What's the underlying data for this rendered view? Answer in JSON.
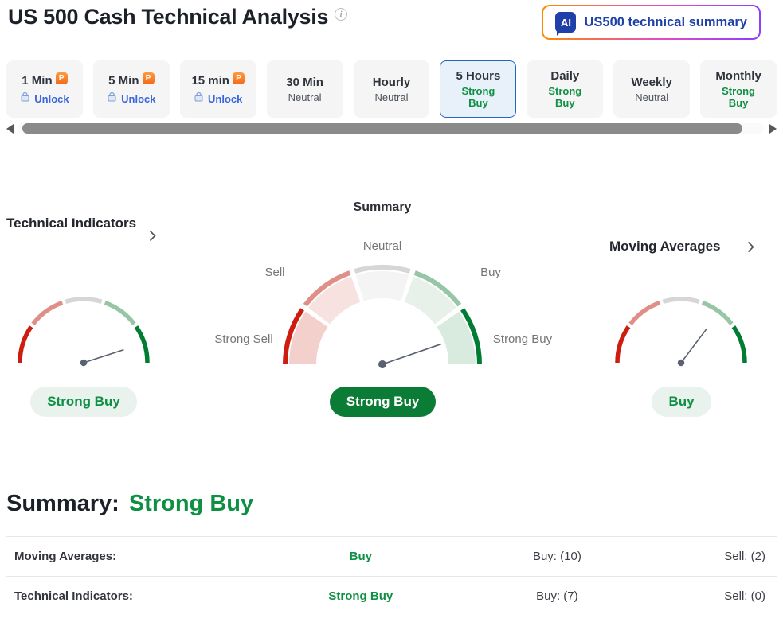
{
  "header": {
    "title": "US 500 Cash Technical Analysis",
    "info_icon": "i",
    "ai_button": {
      "badge": "AI",
      "label": "US500 technical summary"
    }
  },
  "timeframes": {
    "pro_badge": "P",
    "tabs": [
      {
        "label": "1 Min",
        "locked": true,
        "action": "Unlock"
      },
      {
        "label": "5 Min",
        "locked": true,
        "action": "Unlock"
      },
      {
        "label": "15 min",
        "locked": true,
        "action": "Unlock"
      },
      {
        "label": "30 Min",
        "signal": "Neutral"
      },
      {
        "label": "Hourly",
        "signal": "Neutral"
      },
      {
        "label": "5 Hours",
        "signal": "Strong Buy",
        "selected": true
      },
      {
        "label": "Daily",
        "signal": "Strong Buy"
      },
      {
        "label": "Weekly",
        "signal": "Neutral"
      },
      {
        "label": "Monthly",
        "signal": "Strong Buy"
      }
    ]
  },
  "gauges": {
    "scale_labels": {
      "strong_sell": "Strong Sell",
      "sell": "Sell",
      "neutral": "Neutral",
      "buy": "Buy",
      "strong_buy": "Strong Buy"
    },
    "technical_indicators": {
      "title": "Technical Indicators",
      "verdict": "Strong Buy",
      "needle_deg": 18
    },
    "summary": {
      "title": "Summary",
      "verdict": "Strong Buy",
      "needle_deg": 19
    },
    "moving_averages": {
      "title": "Moving Averages",
      "verdict": "Buy",
      "needle_deg": 53
    }
  },
  "summary_section": {
    "heading": "Summary:",
    "verdict": "Strong Buy",
    "rows": [
      {
        "name": "Moving Averages:",
        "signal": "Buy",
        "buy": "Buy: (10)",
        "sell": "Sell: (2)"
      },
      {
        "name": "Technical Indicators:",
        "signal": "Strong Buy",
        "buy": "Buy: (7)",
        "sell": "Sell: (0)"
      }
    ]
  },
  "colors": {
    "strong_sell_arc": "#cc1d10",
    "sell_arc": "#de9088",
    "neutral_arc": "#d6d6d6",
    "buy_arc": "#97c6a6",
    "strong_buy_arc": "#007d33",
    "band_strong_sell": "#f3d0cc",
    "band_sell": "#f8e2df",
    "band_neutral": "#f4f4f4",
    "band_buy": "#e7f1e9",
    "band_strong_buy": "#d9ebde",
    "green_text": "#0e9044",
    "dark_pill": "#0b7c36",
    "light_pill": "#e9f2ec",
    "selected_tab_border": "#2268c0",
    "unlock_blue": "#3b67da",
    "ai_navy": "#1e40a8"
  }
}
